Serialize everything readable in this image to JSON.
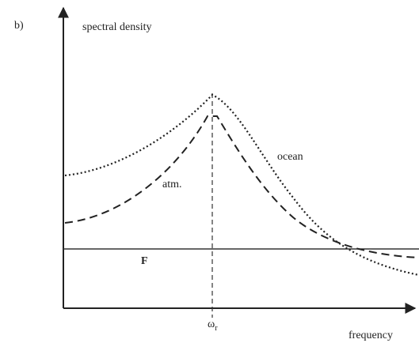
{
  "panel_label": "b)",
  "y_axis_label": "spectral density",
  "x_axis_label": "frequency",
  "tick": {
    "symbol": "ω",
    "subscript": "r"
  },
  "curves": {
    "ocean": "ocean",
    "atm": "atm.",
    "forcing": "F"
  }
}
